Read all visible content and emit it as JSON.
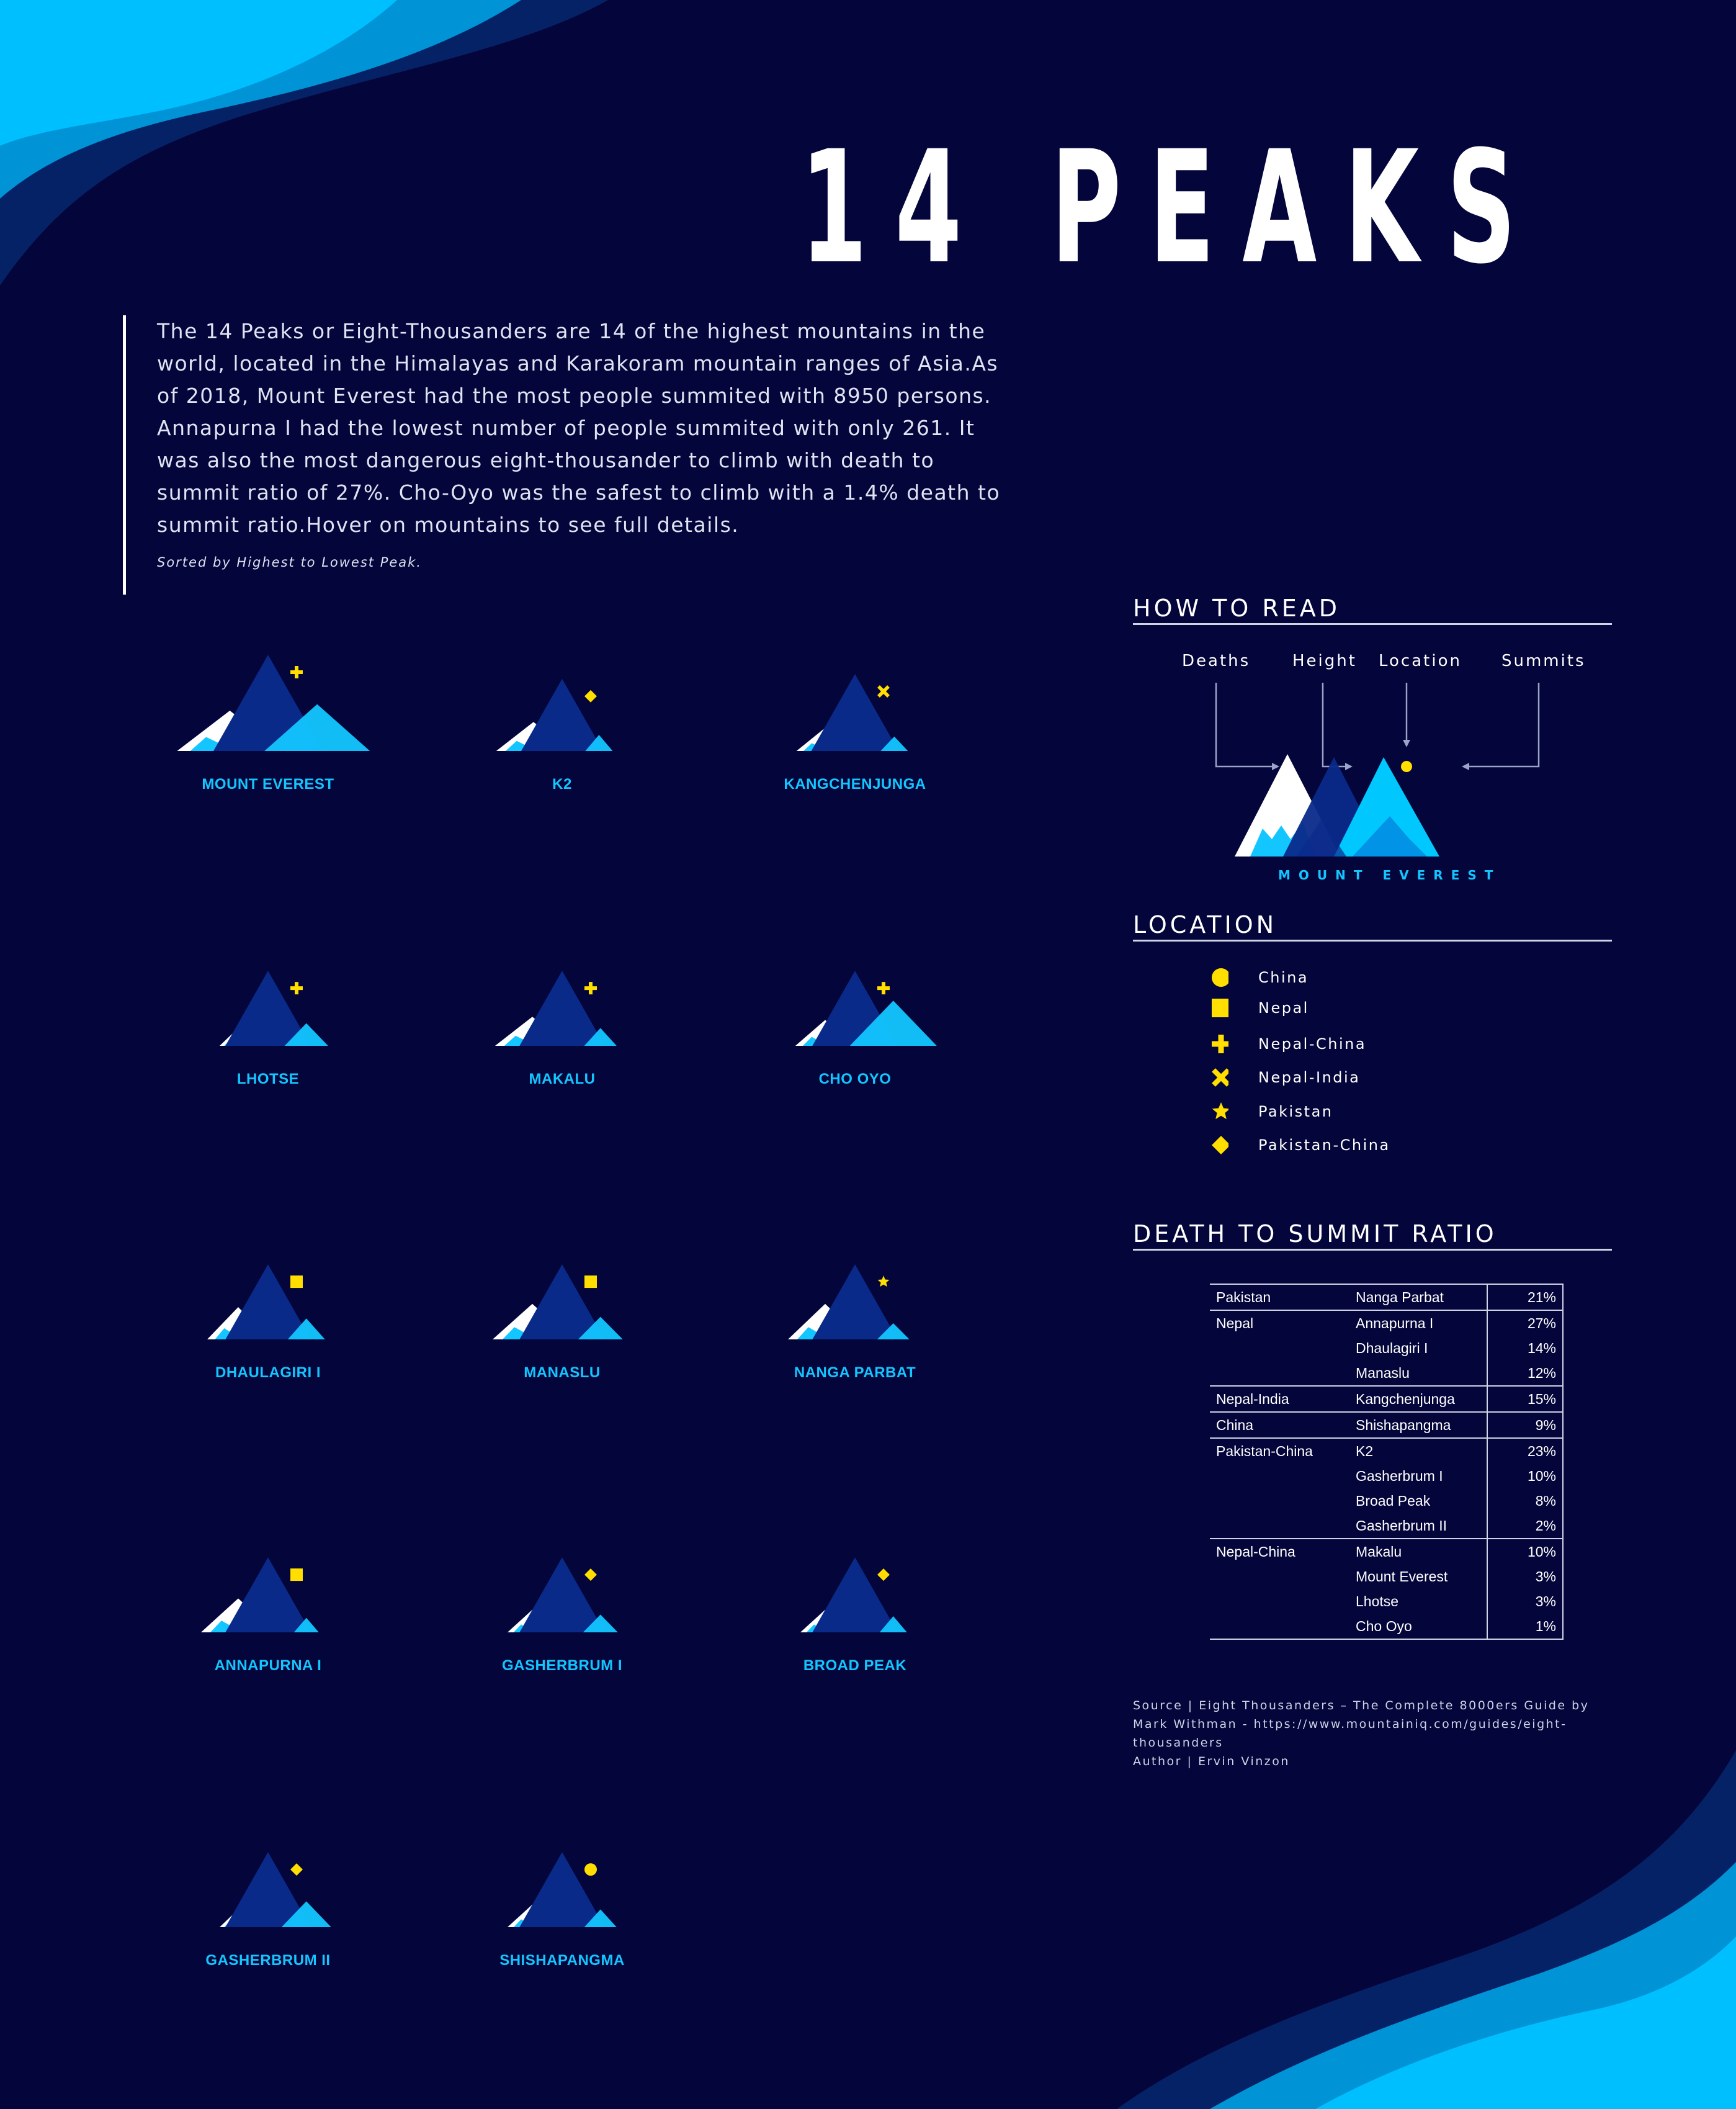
{
  "title": "14 PEAKS",
  "intro": {
    "text": "The 14 Peaks or Eight-Thousanders are 14 of the highest mountains in the world, located in the Himalayas and Karakoram mountain ranges of Asia.As of 2018, Mount Everest had the most people summited with 8950 persons. Annapurna I had the lowest number of people summited with only 261. It was also the most dangerous eight-thousander to climb with death to summit ratio of 27%. Cho-Oyo was the safest to climb with a 1.4% death to summit ratio.Hover on mountains to see full details.",
    "sort_note": "Sorted by Highest to Lowest Peak."
  },
  "peaks": [
    {
      "name": "MOUNT EVEREST",
      "location": "Nepal-China"
    },
    {
      "name": "K2",
      "location": "Pakistan-China"
    },
    {
      "name": "KANGCHENJUNGA",
      "location": "Nepal-India"
    },
    {
      "name": "LHOTSE",
      "location": "Nepal-China"
    },
    {
      "name": "MAKALU",
      "location": "Nepal-China"
    },
    {
      "name": "CHO OYO",
      "location": "Nepal-China"
    },
    {
      "name": "DHAULAGIRI I",
      "location": "Nepal"
    },
    {
      "name": "MANASLU",
      "location": "Nepal"
    },
    {
      "name": "NANGA PARBAT",
      "location": "Pakistan"
    },
    {
      "name": "ANNAPURNA I",
      "location": "Nepal"
    },
    {
      "name": "GASHERBRUM I",
      "location": "Pakistan-China"
    },
    {
      "name": "BROAD PEAK",
      "location": "Pakistan-China"
    },
    {
      "name": "GASHERBRUM II",
      "location": "Pakistan-China"
    },
    {
      "name": "SHISHAPANGMA",
      "location": "China"
    }
  ],
  "how_to_read": {
    "title": "HOW TO READ",
    "labels": {
      "deaths": "Deaths",
      "height": "Height",
      "location": "Location",
      "summits": "Summits"
    },
    "example_name": "MOUNT EVEREST"
  },
  "location_legend": {
    "title": "LOCATION",
    "items": [
      {
        "label": "China",
        "icon": "circle-icon"
      },
      {
        "label": "Nepal",
        "icon": "square-icon"
      },
      {
        "label": "Nepal-China",
        "icon": "plus-icon"
      },
      {
        "label": "Nepal-India",
        "icon": "cross-icon"
      },
      {
        "label": "Pakistan",
        "icon": "star-icon"
      },
      {
        "label": "Pakistan-China",
        "icon": "diamond-icon"
      }
    ]
  },
  "ratio": {
    "title": "DEATH TO SUMMIT RATIO",
    "groups": [
      {
        "location": "Pakistan",
        "rows": [
          {
            "peak": "Nanga Parbat",
            "pct": "21%"
          }
        ]
      },
      {
        "location": "Nepal",
        "rows": [
          {
            "peak": "Annapurna I",
            "pct": "27%"
          },
          {
            "peak": "Dhaulagiri I",
            "pct": "14%"
          },
          {
            "peak": "Manaslu",
            "pct": "12%"
          }
        ]
      },
      {
        "location": "Nepal-India",
        "rows": [
          {
            "peak": "Kangchenjunga",
            "pct": "15%"
          }
        ]
      },
      {
        "location": "China",
        "rows": [
          {
            "peak": "Shishapangma",
            "pct": "9%"
          }
        ]
      },
      {
        "location": "Pakistan-China",
        "rows": [
          {
            "peak": "K2",
            "pct": "23%"
          },
          {
            "peak": "Gasherbrum I",
            "pct": "10%"
          },
          {
            "peak": "Broad Peak",
            "pct": "8%"
          },
          {
            "peak": "Gasherbrum II",
            "pct": "2%"
          }
        ]
      },
      {
        "location": "Nepal-China",
        "rows": [
          {
            "peak": "Makalu",
            "pct": "10%"
          },
          {
            "peak": "Mount Everest",
            "pct": "3%"
          },
          {
            "peak": "Lhotse",
            "pct": "3%"
          },
          {
            "peak": "Cho Oyo",
            "pct": "1%"
          }
        ]
      }
    ]
  },
  "source": {
    "line1": "Source | Eight Thousanders – The Complete 8000ers Guide by Mark Withman - https://www.mountainiq.com/guides/eight-thousanders",
    "line2": "Author | Ervin Vinzon"
  },
  "colors": {
    "background": "#04053a",
    "mountain_dark": "#0a2a8a",
    "mountain_light": "#13c6ff",
    "marker": "#ffde00",
    "wave_light": "#00bfff",
    "wave_mid": "#0093d6",
    "wave_dark": "#062266"
  }
}
